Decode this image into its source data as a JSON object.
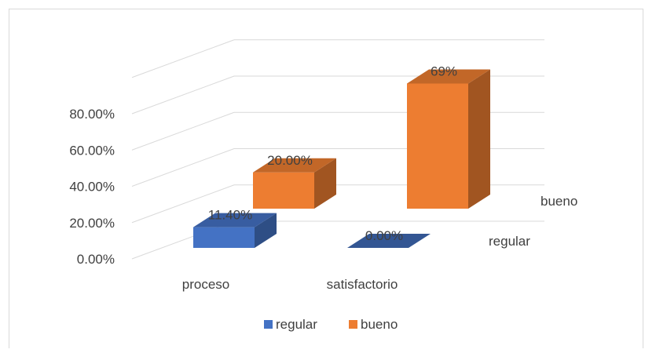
{
  "chart_data": {
    "type": "bar",
    "categories": [
      "proceso",
      "satisfactorio"
    ],
    "series": [
      {
        "name": "regular",
        "values": [
          0.114,
          0.0
        ],
        "labels": [
          "11.40%",
          "0.00%"
        ],
        "color": "#4472c4"
      },
      {
        "name": "bueno",
        "values": [
          0.2,
          0.69
        ],
        "labels": [
          "20.00%",
          "69%"
        ],
        "color": "#ed7d31"
      }
    ],
    "y_ticks": [
      "0.00%",
      "20.00%",
      "40.00%",
      "60.00%",
      "80.00%"
    ],
    "ylim": [
      0,
      1.0
    ],
    "depth_labels": [
      "regular",
      "bueno"
    ],
    "legend": {
      "position": "bottom",
      "items": [
        "regular",
        "bueno"
      ]
    },
    "grid": true,
    "title": "",
    "xlabel": "",
    "ylabel": ""
  }
}
